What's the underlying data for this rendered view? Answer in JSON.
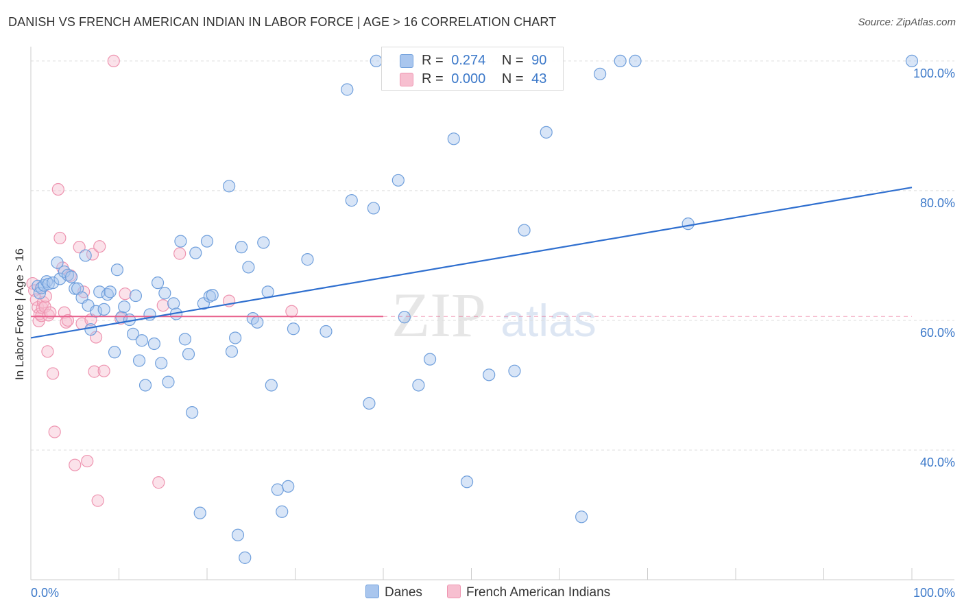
{
  "header": {
    "title": "DANISH VS FRENCH AMERICAN INDIAN IN LABOR FORCE | AGE > 16 CORRELATION CHART",
    "source": "Source: ZipAtlas.com"
  },
  "legend": {
    "rows": [
      {
        "r_label": "R =",
        "r_value": "0.274",
        "n_label": "N =",
        "n_value": "90"
      },
      {
        "r_label": "R =",
        "r_value": "0.000",
        "n_label": "N =",
        "n_value": "43"
      }
    ],
    "bottom": [
      "Danes",
      "French American Indians"
    ]
  },
  "watermark": {
    "zip": "ZIP",
    "atlas": "atlas"
  },
  "colors": {
    "danes_fill": "#a9c6ee",
    "danes_stroke": "#6f9fdc",
    "danes_line": "#2f6fcf",
    "french_fill": "#f7bfd0",
    "french_stroke": "#ee94b0",
    "french_line": "#e8608c",
    "axis_label": "#3b78c9",
    "grid": "#dddddd"
  },
  "chart_data": {
    "type": "scatter",
    "title": "DANISH VS FRENCH AMERICAN INDIAN IN LABOR FORCE | AGE > 16 CORRELATION CHART",
    "xlabel": "",
    "ylabel": "In Labor Force | Age > 16",
    "xlim": [
      0,
      100
    ],
    "ylim": [
      20,
      102
    ],
    "x_tick_labels": [
      "0.0%",
      "100.0%"
    ],
    "y_ticks": [
      40,
      60,
      80,
      100
    ],
    "y_tick_labels": [
      "40.0%",
      "60.0%",
      "80.0%",
      "100.0%"
    ],
    "grid": true,
    "legend_position": "top-center",
    "series": [
      {
        "name": "Danes",
        "r": 0.274,
        "n": 90,
        "trend": {
          "x": [
            0,
            100
          ],
          "y": [
            57.3,
            80.5
          ]
        },
        "points": [
          [
            0.8,
            65.3
          ],
          [
            1.0,
            64.2
          ],
          [
            1.2,
            65.0
          ],
          [
            1.5,
            65.4
          ],
          [
            1.8,
            66.0
          ],
          [
            2.0,
            65.6
          ],
          [
            2.5,
            65.8
          ],
          [
            3.0,
            68.9
          ],
          [
            3.3,
            66.4
          ],
          [
            3.8,
            67.5
          ],
          [
            4.2,
            67.0
          ],
          [
            4.6,
            66.7
          ],
          [
            5.0,
            64.9
          ],
          [
            5.3,
            64.9
          ],
          [
            5.8,
            63.5
          ],
          [
            6.2,
            70.0
          ],
          [
            6.5,
            62.3
          ],
          [
            6.8,
            58.6
          ],
          [
            7.4,
            61.4
          ],
          [
            7.8,
            64.4
          ],
          [
            8.3,
            61.7
          ],
          [
            8.7,
            64.0
          ],
          [
            9.0,
            64.4
          ],
          [
            9.5,
            55.1
          ],
          [
            9.8,
            67.8
          ],
          [
            10.3,
            60.5
          ],
          [
            10.6,
            62.1
          ],
          [
            11.2,
            60.1
          ],
          [
            11.6,
            57.9
          ],
          [
            11.9,
            63.8
          ],
          [
            12.3,
            53.8
          ],
          [
            12.6,
            56.9
          ],
          [
            13.0,
            50.0
          ],
          [
            13.5,
            60.9
          ],
          [
            14.0,
            56.4
          ],
          [
            14.4,
            65.8
          ],
          [
            14.8,
            53.4
          ],
          [
            15.2,
            64.2
          ],
          [
            15.6,
            50.5
          ],
          [
            16.2,
            62.6
          ],
          [
            16.5,
            61.0
          ],
          [
            17.0,
            72.2
          ],
          [
            17.5,
            57.1
          ],
          [
            17.9,
            54.8
          ],
          [
            18.3,
            45.8
          ],
          [
            18.7,
            70.4
          ],
          [
            19.2,
            30.3
          ],
          [
            19.6,
            62.6
          ],
          [
            20.0,
            72.2
          ],
          [
            20.3,
            63.7
          ],
          [
            20.6,
            63.9
          ],
          [
            22.5,
            80.7
          ],
          [
            22.8,
            55.2
          ],
          [
            23.2,
            57.3
          ],
          [
            23.5,
            26.9
          ],
          [
            23.9,
            71.3
          ],
          [
            24.3,
            23.4
          ],
          [
            24.7,
            68.2
          ],
          [
            25.2,
            60.3
          ],
          [
            25.7,
            59.7
          ],
          [
            26.4,
            72.0
          ],
          [
            26.9,
            64.4
          ],
          [
            27.3,
            50.0
          ],
          [
            28.0,
            33.9
          ],
          [
            28.5,
            30.5
          ],
          [
            29.2,
            34.4
          ],
          [
            29.8,
            58.7
          ],
          [
            31.4,
            69.4
          ],
          [
            33.5,
            58.3
          ],
          [
            35.9,
            95.6
          ],
          [
            36.4,
            78.5
          ],
          [
            38.4,
            47.2
          ],
          [
            38.9,
            77.3
          ],
          [
            39.2,
            100.0
          ],
          [
            41.7,
            81.6
          ],
          [
            42.4,
            60.5
          ],
          [
            44.0,
            50.0
          ],
          [
            45.3,
            54.0
          ],
          [
            48.0,
            88.0
          ],
          [
            49.5,
            35.1
          ],
          [
            52.0,
            51.6
          ],
          [
            54.9,
            52.2
          ],
          [
            56.0,
            73.9
          ],
          [
            58.5,
            89.0
          ],
          [
            62.5,
            29.7
          ],
          [
            64.6,
            98.0
          ],
          [
            66.9,
            100.0
          ],
          [
            68.6,
            100.0
          ],
          [
            74.6,
            74.9
          ],
          [
            100.0,
            100.0
          ]
        ]
      },
      {
        "name": "French American Indians",
        "r": 0.0,
        "n": 43,
        "trend": {
          "x": [
            0,
            40
          ],
          "y": [
            60.6,
            60.6
          ]
        },
        "points": [
          [
            0.2,
            65.7
          ],
          [
            0.4,
            64.6
          ],
          [
            0.6,
            63.2
          ],
          [
            0.8,
            62.0
          ],
          [
            0.9,
            59.9
          ],
          [
            1.0,
            61.0
          ],
          [
            1.2,
            60.7
          ],
          [
            1.3,
            61.9
          ],
          [
            1.4,
            62.8
          ],
          [
            1.6,
            62.1
          ],
          [
            1.7,
            63.7
          ],
          [
            1.9,
            55.2
          ],
          [
            2.0,
            60.8
          ],
          [
            2.2,
            61.2
          ],
          [
            2.5,
            51.8
          ],
          [
            2.7,
            42.8
          ],
          [
            3.1,
            80.2
          ],
          [
            3.3,
            72.7
          ],
          [
            3.6,
            68.1
          ],
          [
            3.8,
            61.2
          ],
          [
            4.0,
            59.7
          ],
          [
            4.2,
            60.0
          ],
          [
            4.5,
            66.9
          ],
          [
            5.0,
            37.7
          ],
          [
            5.5,
            71.3
          ],
          [
            5.8,
            59.5
          ],
          [
            6.0,
            64.4
          ],
          [
            6.4,
            38.3
          ],
          [
            6.8,
            60.1
          ],
          [
            7.0,
            70.2
          ],
          [
            7.2,
            52.1
          ],
          [
            7.4,
            57.4
          ],
          [
            7.6,
            32.2
          ],
          [
            7.8,
            71.4
          ],
          [
            8.3,
            52.2
          ],
          [
            9.4,
            100.0
          ],
          [
            10.2,
            60.3
          ],
          [
            10.7,
            64.1
          ],
          [
            14.5,
            35.0
          ],
          [
            15.0,
            62.3
          ],
          [
            16.9,
            70.3
          ],
          [
            22.5,
            63.0
          ],
          [
            29.6,
            61.4
          ]
        ]
      }
    ]
  }
}
